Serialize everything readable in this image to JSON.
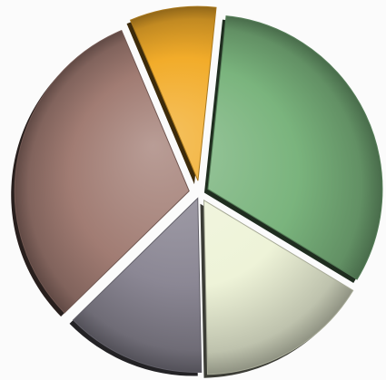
{
  "chart_data": {
    "type": "pie",
    "style": "3d-shaded, exploded slices",
    "legend": "none",
    "title": "",
    "slices": [
      {
        "value": 32,
        "color": "#7ab47d"
      },
      {
        "value": 16,
        "color": "#eef3d8"
      },
      {
        "value": 13,
        "color": "#8b8794"
      },
      {
        "value": 31,
        "color": "#a17c73"
      },
      {
        "value": 8,
        "color": "#f2ac2a"
      }
    ]
  }
}
